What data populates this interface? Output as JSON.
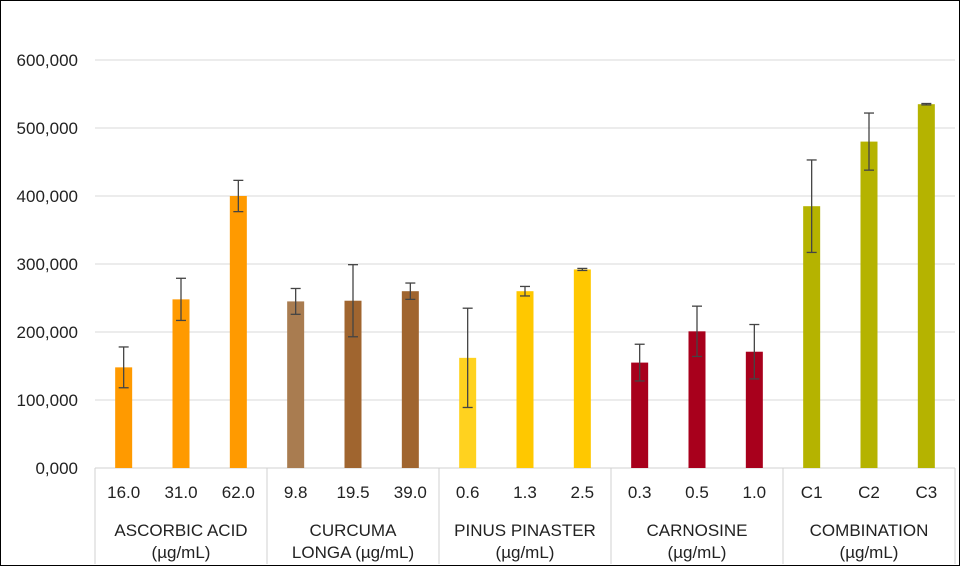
{
  "chart_data": {
    "type": "bar",
    "title": "",
    "xlabel": "",
    "ylabel": "",
    "ylim": [
      0,
      600000
    ],
    "yticks": [
      0,
      100000,
      200000,
      300000,
      400000,
      500000,
      600000
    ],
    "ytick_labels": [
      "0,000",
      "100,000",
      "200,000",
      "300,000",
      "400,000",
      "500,000",
      "600,000"
    ],
    "grid": true,
    "legend": "none",
    "groups": [
      {
        "label_lines": [
          "ASCORBIC ACID",
          "(µg/mL)"
        ],
        "categories": [
          "16.0",
          "31.0",
          "62.0"
        ],
        "values": [
          148000,
          248000,
          400000
        ],
        "errors": [
          30000,
          31000,
          23000
        ],
        "color": "#FF9A00"
      },
      {
        "label_lines": [
          "CURCUMA",
          "LONGA (µg/mL)"
        ],
        "categories": [
          "9.8",
          "19.5",
          "39.0"
        ],
        "values": [
          245000,
          246000,
          260000
        ],
        "errors": [
          19000,
          53000,
          12000
        ],
        "colors": [
          "#A97C50",
          "#A0652F",
          "#A0652F"
        ]
      },
      {
        "label_lines": [
          "PINUS PINASTER",
          "(µg/mL)"
        ],
        "categories": [
          "0.6",
          "1.3",
          "2.5"
        ],
        "values": [
          162000,
          260000,
          292000
        ],
        "errors": [
          73000,
          7000,
          1500
        ],
        "colors": [
          "#FFD21F",
          "#FFC800",
          "#FFC800"
        ]
      },
      {
        "label_lines": [
          "CARNOSINE",
          "(µg/mL)"
        ],
        "categories": [
          "0.3",
          "0.5",
          "1.0"
        ],
        "values": [
          155000,
          201000,
          171000
        ],
        "errors": [
          27000,
          37000,
          40000
        ],
        "color": "#A8001C"
      },
      {
        "label_lines": [
          "COMBINATION",
          "(µg/mL)"
        ],
        "categories": [
          "C1",
          "C2",
          "C3"
        ],
        "values": [
          385000,
          480000,
          535000
        ],
        "errors": [
          68000,
          42000,
          1000
        ],
        "color": "#B5B300"
      }
    ]
  }
}
